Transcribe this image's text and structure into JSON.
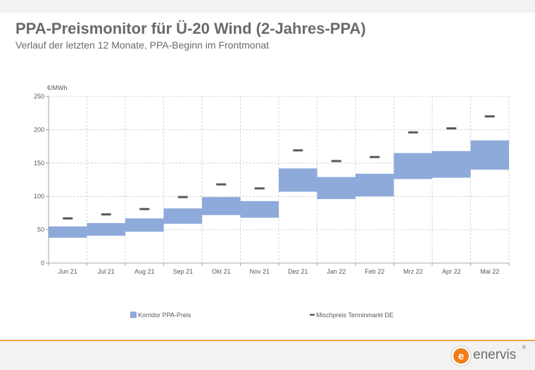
{
  "header": {
    "title": "PPA-Preismonitor für Ü-20 Wind (2-Jahres-PPA)",
    "subtitle": "Verlauf der letzten 12 Monate, PPA-Beginn im Frontmonat"
  },
  "logo": {
    "text": "enervis",
    "reg": "®",
    "mark": "e"
  },
  "colors": {
    "band": "#8eaadb",
    "marker": "#595959",
    "grid": "#cccccc",
    "accent": "#f2a14a"
  },
  "chart_data": {
    "type": "floating-bar",
    "ylabel": "€/MWh",
    "ylim": [
      0,
      250
    ],
    "yticks": [
      "0",
      "50",
      "100",
      "150",
      "200",
      "250"
    ],
    "grid": true,
    "legend_position": "bottom",
    "categories": [
      "Jun 21",
      "Jul 21",
      "Aug 21",
      "Sep 21",
      "Okt 21",
      "Nov 21",
      "Dez 21",
      "Jan 22",
      "Feb 22",
      "Mrz 22",
      "Apr 22",
      "Mai 22"
    ],
    "series": [
      {
        "name": "Korridor PPA-Preis",
        "kind": "range",
        "low": [
          38,
          41,
          47,
          59,
          72,
          68,
          107,
          96,
          100,
          126,
          128,
          140
        ],
        "high": [
          55,
          60,
          67,
          82,
          99,
          93,
          142,
          129,
          134,
          165,
          168,
          184
        ]
      },
      {
        "name": "Mischpreis Terminmarkt DE",
        "kind": "marker",
        "values": [
          67,
          73,
          81,
          99,
          118,
          112,
          169,
          153,
          159,
          196,
          202,
          220
        ]
      }
    ]
  }
}
